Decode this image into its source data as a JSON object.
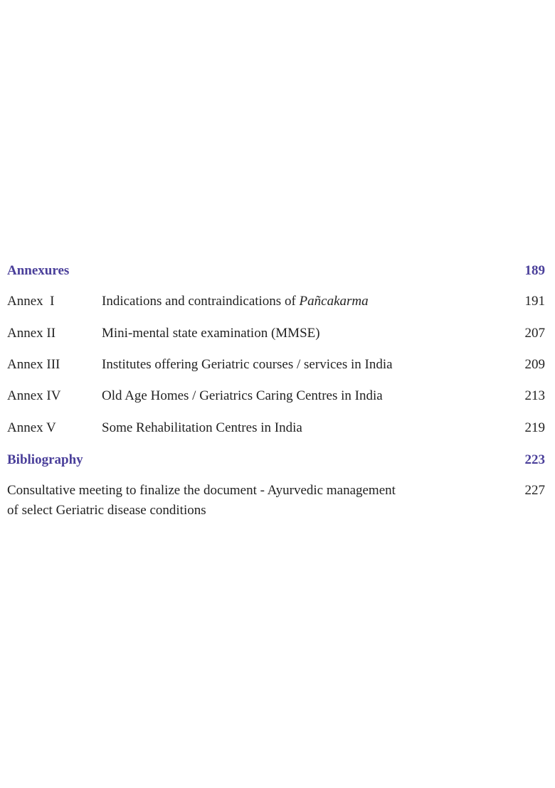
{
  "annexures": {
    "label": "Annexures",
    "page": "189"
  },
  "annexes": [
    {
      "label": "Annex  I",
      "title": "Indications and contraindications of ",
      "title_italic": "Pañcakarma",
      "page": "191"
    },
    {
      "label": "Annex II",
      "title": "Mini-mental state examination (MMSE)",
      "title_italic": "",
      "page": "207"
    },
    {
      "label": "Annex III",
      "title": "Institutes offering Geriatric courses / services in India",
      "title_italic": "",
      "page": "209"
    },
    {
      "label": "Annex IV",
      "title": "Old Age Homes / Geriatrics Caring Centres in India",
      "title_italic": "",
      "page": "213"
    },
    {
      "label": "Annex V",
      "title": "Some Rehabilitation Centres in India",
      "title_italic": "",
      "page": "219"
    }
  ],
  "bibliography": {
    "label": "Bibliography",
    "page": "223"
  },
  "consultative": {
    "line1": "Consultative meeting to finalize the document - Ayurvedic management",
    "line2": "of select Geriatric disease conditions",
    "page": "227"
  }
}
